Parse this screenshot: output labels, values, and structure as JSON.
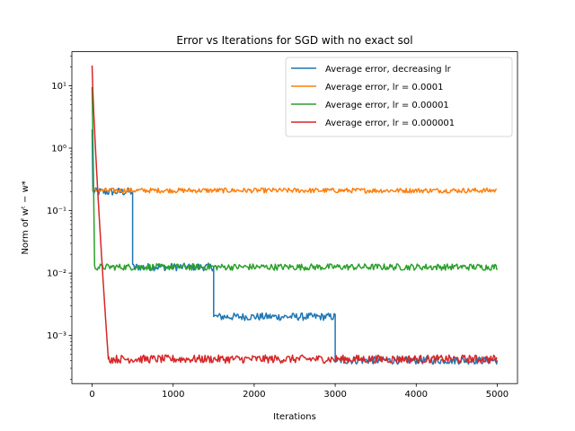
{
  "chart_data": {
    "type": "line",
    "title": "Error vs Iterations for SGD with no exact sol",
    "xlabel": "Iterations",
    "ylabel": "Norm of wᵗ − w*",
    "xlim": [
      -250,
      5250
    ],
    "ylim": [
      0.00017,
      35
    ],
    "yscale": "log",
    "x_ticks": [
      0,
      1000,
      2000,
      3000,
      4000,
      5000
    ],
    "x_tick_labels": [
      "0",
      "1000",
      "2000",
      "3000",
      "4000",
      "5000"
    ],
    "y_ticks": [
      0.001,
      0.01,
      0.1,
      1,
      10
    ],
    "y_tick_labels": [
      "10⁻³",
      "10⁻²",
      "10⁻¹",
      "10⁰",
      "10¹"
    ],
    "grid": false,
    "legend_position": "top-right",
    "series": [
      {
        "name": "Average error, decreasing lr",
        "color": "#1f77b4",
        "segments": [
          {
            "x_start": 0,
            "x_end": 10,
            "level": 2.0
          },
          {
            "x_start": 10,
            "x_end": 500,
            "level": 0.2
          },
          {
            "x_start": 500,
            "x_end": 1500,
            "level": 0.0125
          },
          {
            "x_start": 1500,
            "x_end": 3000,
            "level": 0.002
          },
          {
            "x_start": 3000,
            "x_end": 5000,
            "level": 0.0004
          }
        ]
      },
      {
        "name": "Average error, lr = 0.0001",
        "color": "#ff7f0e",
        "segments": [
          {
            "x_start": 0,
            "x_end": 5000,
            "level": 0.21
          }
        ]
      },
      {
        "name": "Average error, lr = 0.00001",
        "color": "#2ca02c",
        "start_value": 9.5,
        "segments": [
          {
            "x_start": 0,
            "x_end": 5000,
            "level": 0.0125
          }
        ]
      },
      {
        "name": "Average error, lr = 0.000001",
        "color": "#d62728",
        "start_value": 21,
        "segments": [
          {
            "x_start": 0,
            "x_end": 5000,
            "level": 0.00042
          }
        ]
      }
    ]
  }
}
